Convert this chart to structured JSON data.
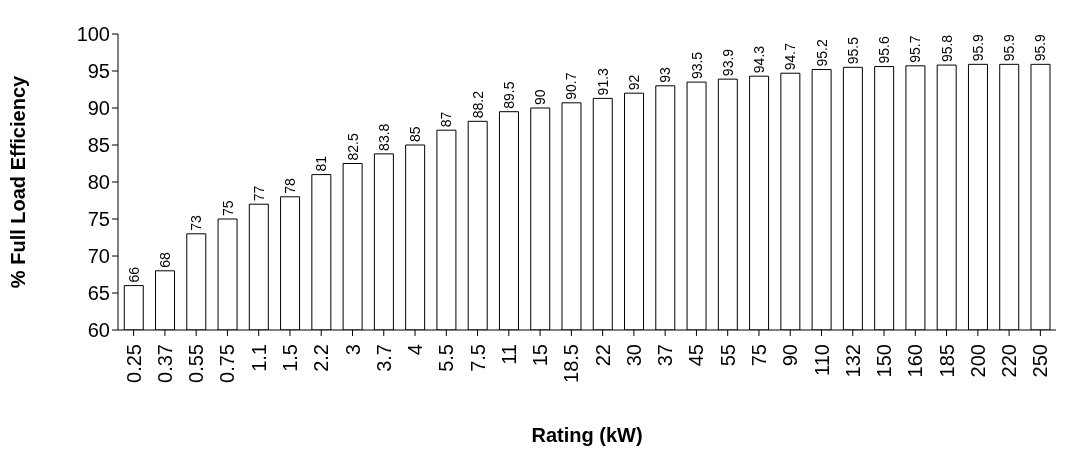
{
  "chart_data": {
    "type": "bar",
    "xlabel": "Rating (kW)",
    "ylabel": "% Full Load Efficiency",
    "categories": [
      "0.25",
      "0.37",
      "0.55",
      "0.75",
      "1.1",
      "1.5",
      "2.2",
      "3",
      "3.7",
      "4",
      "5.5",
      "7.5",
      "11",
      "15",
      "18.5",
      "22",
      "30",
      "37",
      "45",
      "55",
      "75",
      "90",
      "110",
      "132",
      "150",
      "160",
      "185",
      "200",
      "220",
      "250"
    ],
    "values": [
      66,
      68,
      73,
      75,
      77,
      78,
      81,
      82.5,
      83.8,
      85,
      87,
      88.2,
      89.5,
      90,
      90.7,
      91.3,
      92,
      93,
      93.5,
      93.9,
      94.3,
      94.7,
      95.2,
      95.5,
      95.6,
      95.7,
      95.8,
      95.9,
      95.9,
      95.9
    ],
    "color": "#ffffff",
    "ylim": [
      60,
      100
    ],
    "yticks": [
      60,
      65,
      70,
      75,
      80,
      85,
      90,
      95,
      100
    ],
    "grid": false,
    "legend": false,
    "data_labels": true
  }
}
